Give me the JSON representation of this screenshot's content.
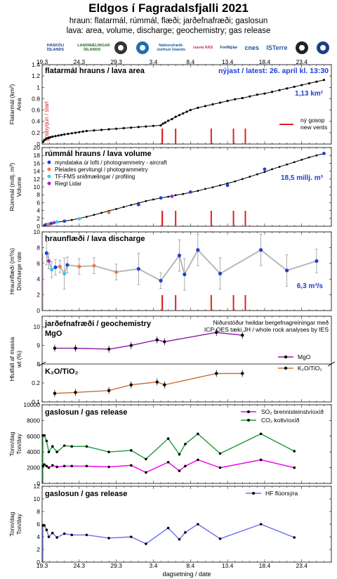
{
  "header": {
    "title": "Eldgos í Fagradalsfjalli 2021",
    "subtitle_is": "hraun: flatarmál, rúmmál, flæði; jarðefnafræði; gaslosun",
    "subtitle_en": "lava: area, volume, discharge; geochemistry; gas release"
  },
  "logos": [
    {
      "name": "haskoli-logo",
      "text": "HÁSKÓLI ÍSLANDS"
    },
    {
      "name": "lmi-logo",
      "text": "LANDMÆLINGAR ÍSLANDS"
    },
    {
      "name": "raven-logo",
      "text": ""
    },
    {
      "name": "vedur-logo",
      "text": ""
    },
    {
      "name": "ni-logo",
      "text": "Náttúrufræði­stofnun Íslands"
    },
    {
      "name": "isavia-logo",
      "text": "isavia ANS"
    },
    {
      "name": "formolar-logo",
      "text": "ForM◎lar"
    },
    {
      "name": "cnes-logo",
      "text": "cnes"
    },
    {
      "name": "isterre-logo",
      "text": "ISTerre"
    },
    {
      "name": "lmv-logo",
      "text": ""
    },
    {
      "name": "cnrs-logo",
      "text": ""
    }
  ],
  "chart_data": {
    "type": "line",
    "x_ticks": [
      "19.3",
      "24.3",
      "29.3",
      "3.4",
      "8.4",
      "13.4",
      "18.4",
      "23.4"
    ],
    "x_label": "dagsetning / date",
    "x_start": "2021-03-19",
    "new_vent_days": [
      16.2,
      16.2,
      18,
      22.8,
      25.8,
      27.4
    ],
    "panels": [
      {
        "id": "area",
        "title": "flatarmál hrauns / lava area",
        "latest": "nýjast / latest: 26. apríl kl. 13:30",
        "ylabel_is": "Flatarmál (km²)",
        "ylabel_en": "Area",
        "ylim": [
          0,
          1.4
        ],
        "yticks": [
          "0",
          "0.2",
          "0.4",
          "0.6",
          "0.8",
          "1",
          "1.2",
          "1.4"
        ],
        "final_value": "1,13 km²",
        "start_label": "gosbyrjun / start",
        "legend_is": "ný gosop",
        "legend_en": "new vents",
        "series": [
          {
            "x": [
              0.15,
              0.3,
              0.5,
              0.7,
              0.9,
              1.1,
              1.4,
              1.8,
              2.2,
              2.6,
              3,
              3.5,
              4,
              4.5,
              5,
              5.5,
              6,
              7,
              8,
              9,
              10,
              11,
              12,
              13,
              14,
              15,
              16,
              16.3,
              16.6,
              17,
              17.5,
              18,
              18.5,
              19,
              19.5,
              20,
              21,
              22,
              23,
              24,
              25,
              26,
              27,
              28,
              29,
              30,
              31,
              32,
              33,
              34,
              35,
              36,
              37,
              38
            ],
            "y": [
              0.04,
              0.07,
              0.09,
              0.1,
              0.11,
              0.12,
              0.13,
              0.14,
              0.15,
              0.16,
              0.17,
              0.18,
              0.19,
              0.2,
              0.21,
              0.22,
              0.23,
              0.24,
              0.25,
              0.26,
              0.27,
              0.28,
              0.29,
              0.3,
              0.31,
              0.32,
              0.33,
              0.36,
              0.38,
              0.41,
              0.44,
              0.48,
              0.51,
              0.54,
              0.57,
              0.6,
              0.64,
              0.67,
              0.7,
              0.73,
              0.76,
              0.79,
              0.81,
              0.84,
              0.87,
              0.89,
              0.92,
              0.95,
              0.98,
              1.01,
              1.04,
              1.07,
              1.1,
              1.13
            ]
          }
        ]
      },
      {
        "id": "volume",
        "title": "rúmmál hrauns / lava volume",
        "ylabel_is": "Rúmmál (millj. m³)",
        "ylabel_en": "Volume",
        "ylim": [
          0,
          20
        ],
        "yticks": [
          "0",
          "2",
          "4",
          "6",
          "8",
          "10",
          "12",
          "14",
          "16",
          "18",
          "20"
        ],
        "final_value": "18,5 millj. m³",
        "legend": [
          {
            "label": "myndataka úr lofti / photogrammetry - aircraft",
            "color": "#1f3fd6"
          },
          {
            "label": "Pleiades gervitungl / photogrammetry",
            "color": "#ee7a4a"
          },
          {
            "label": "TF-FMS sniðmælingar / profiling",
            "color": "#3ec7f0"
          },
          {
            "label": "Riegl Lidar",
            "color": "#9b30c0"
          }
        ],
        "series": [
          {
            "x": [
              0.3,
              1,
              1.5,
              2,
              3,
              4,
              5,
              6,
              7,
              8,
              9,
              10,
              11,
              12,
              13,
              14,
              15,
              16,
              17,
              18,
              19,
              20,
              21,
              22,
              23,
              24,
              25,
              26,
              27,
              28,
              29,
              30,
              31,
              32,
              33,
              34,
              35,
              36,
              37,
              38
            ],
            "y": [
              0.3,
              0.6,
              0.8,
              1,
              1.3,
              1.6,
              2,
              2.4,
              2.9,
              3.4,
              3.9,
              4.4,
              4.9,
              5.4,
              5.9,
              6.4,
              6.8,
              7.2,
              7.5,
              7.9,
              8.2,
              8.6,
              9,
              9.5,
              9.9,
              10.4,
              10.9,
              11.4,
              12,
              12.6,
              13.2,
              13.8,
              14.5,
              15.1,
              15.7,
              16.3,
              16.9,
              17.5,
              18,
              18.5
            ]
          }
        ],
        "points": [
          {
            "x": 0.5,
            "y": 0.4,
            "c": "#1f3fd6"
          },
          {
            "x": 1.2,
            "y": 0.7,
            "c": "#1f3fd6"
          },
          {
            "x": 2,
            "y": 1.1,
            "c": "#3ec7f0"
          },
          {
            "x": 3,
            "y": 1.3,
            "c": "#1f3fd6"
          },
          {
            "x": 5,
            "y": 1.9,
            "c": "#3ec7f0"
          },
          {
            "x": 9,
            "y": 3.5,
            "c": "#ee7a4a"
          },
          {
            "x": 13,
            "y": 5.5,
            "c": "#1f3fd6"
          },
          {
            "x": 16,
            "y": 7.2,
            "c": "#1f3fd6"
          },
          {
            "x": 17.5,
            "y": 7.6,
            "c": "#9b30c0"
          },
          {
            "x": 20,
            "y": 8.7,
            "c": "#1f3fd6"
          },
          {
            "x": 25,
            "y": 10.4,
            "c": "#1f3fd6"
          },
          {
            "x": 30,
            "y": 14.5,
            "c": "#1f3fd6"
          },
          {
            "x": 38,
            "y": 18.5,
            "c": "#1f3fd6"
          },
          {
            "x": 0.8,
            "y": 0.5,
            "c": "#ee7a4a"
          },
          {
            "x": 1.6,
            "y": 0.9,
            "c": "#9b30c0"
          }
        ]
      },
      {
        "id": "discharge",
        "title": "hraunflæði / lava discharge",
        "ylabel_is": "Hraunflæði (m³/s)",
        "ylabel_en": "Discharge rate",
        "ylim": [
          0,
          10
        ],
        "yticks": [
          "0",
          "2",
          "4",
          "6",
          "8",
          "10"
        ],
        "final_value": "6,3 m³/s",
        "points": [
          {
            "x": 0.6,
            "y": 7.3,
            "c": "#1f3fd6",
            "e": 1.5
          },
          {
            "x": 0.9,
            "y": 6.3,
            "c": "#9b30c0",
            "e": 1
          },
          {
            "x": 1.3,
            "y": 5.2,
            "c": "#3ec7f0",
            "e": 1
          },
          {
            "x": 1.8,
            "y": 5.5,
            "c": "#1f3fd6",
            "e": 1
          },
          {
            "x": 2.4,
            "y": 5.6,
            "c": "#ee7a4a",
            "e": 0.8
          },
          {
            "x": 3,
            "y": 4.7,
            "c": "#3ec7f0",
            "e": 2
          },
          {
            "x": 3.4,
            "y": 5.8,
            "c": "#1f3fd6",
            "e": 1
          },
          {
            "x": 5,
            "y": 5.6,
            "c": "#ee7a4a",
            "e": 1
          },
          {
            "x": 7,
            "y": 5.7,
            "c": "#ee7a4a",
            "e": 1
          },
          {
            "x": 10,
            "y": 4.9,
            "c": "#ee7a4a",
            "e": 1
          },
          {
            "x": 13,
            "y": 5.3,
            "c": "#1f3fd6",
            "e": 2
          },
          {
            "x": 16,
            "y": 3.8,
            "c": "#1f3fd6",
            "e": 1
          },
          {
            "x": 18.5,
            "y": 7,
            "c": "#1f3fd6",
            "e": 2
          },
          {
            "x": 19.2,
            "y": 4.6,
            "c": "#1f3fd6",
            "e": 2
          },
          {
            "x": 21,
            "y": 7.7,
            "c": "#1f3fd6",
            "e": 2
          },
          {
            "x": 24,
            "y": 4.7,
            "c": "#1f3fd6",
            "e": 2
          },
          {
            "x": 29.5,
            "y": 7.7,
            "c": "#1f3fd6",
            "e": 2
          },
          {
            "x": 33,
            "y": 5.1,
            "c": "#1f3fd6",
            "e": 2
          },
          {
            "x": 37,
            "y": 6.3,
            "c": "#1f3fd6",
            "e": 1.5
          }
        ]
      },
      {
        "id": "geochem",
        "title": "jarðefnafræði / geochemistry",
        "sub_upper": "MgO",
        "sub_lower": "K₂O/TiO₂",
        "note1": "Niðurstöður heildar bergefnagreiningar með",
        "note2": "ICP-OES tæki JH / whole rock analyses by IES",
        "ylabel_is": "Hlutfall af massa",
        "ylabel_en": "wt (%)",
        "upper_ylim": [
          8,
          10.5
        ],
        "upper_yticks": [
          "8",
          "9",
          "10"
        ],
        "lower_ylim": [
          0.1,
          0.3
        ],
        "lower_yticks": [
          "0.1",
          "0.2"
        ],
        "legend_upper": "MgO",
        "legend_lower": "K₂O/TiO₂",
        "mgo": {
          "x": [
            1.7,
            4.5,
            9,
            12,
            15.5,
            16.5,
            23.5,
            27
          ],
          "y": [
            8.85,
            8.85,
            8.8,
            9,
            9.3,
            9.2,
            9.7,
            9.55
          ]
        },
        "k2o": {
          "x": [
            1.7,
            4.5,
            9,
            12,
            15.5,
            16.5,
            23.5,
            27
          ],
          "y": [
            0.145,
            0.15,
            0.16,
            0.19,
            0.205,
            0.19,
            0.25,
            0.25
          ]
        }
      },
      {
        "id": "gas",
        "title": "gaslosun / gas release",
        "ylabel_is": "Tonn/dag",
        "ylabel_en": "Ton/day",
        "ylim": [
          0,
          10000
        ],
        "yticks": [
          "0",
          "2000",
          "4000",
          "6000",
          "8000",
          "10000"
        ],
        "legend": [
          {
            "label": "SO₂ brennisteinstvíoxíð",
            "color": "#ee00ee"
          },
          {
            "label": "CO₂ koltvíoxíð",
            "color": "#1e9a3a"
          }
        ],
        "so2": {
          "x": [
            0.1,
            0.3,
            0.6,
            0.9,
            1.4,
            2,
            3,
            4,
            6,
            9,
            12,
            14,
            17,
            18.5,
            19.3,
            21,
            24,
            29.5,
            34
          ],
          "y": [
            2200,
            2400,
            2200,
            2000,
            2300,
            2100,
            2200,
            2200,
            2200,
            2100,
            2300,
            1400,
            2700,
            1600,
            2200,
            3000,
            2000,
            3000,
            2000
          ]
        },
        "co2": {
          "x": [
            0.1,
            0.3,
            0.6,
            0.9,
            1.4,
            2,
            3,
            4,
            6,
            9,
            12,
            14,
            17,
            18.5,
            19.3,
            21,
            24,
            29.5,
            34
          ],
          "y": [
            6100,
            6100,
            5400,
            4000,
            4700,
            4000,
            4800,
            4700,
            4700,
            4000,
            4200,
            3100,
            5700,
            3700,
            5000,
            6300,
            3800,
            6300,
            4100
          ]
        }
      },
      {
        "id": "hf",
        "title": "gaslosun / gas release",
        "ylabel_is": "Tonn/dag",
        "ylabel_en": "Ton/day",
        "ylim": [
          0,
          12
        ],
        "yticks": [
          "0",
          "2",
          "4",
          "6",
          "8",
          "10",
          "12"
        ],
        "legend": [
          {
            "label": "HF flúorsýra",
            "color": "#6b70f0"
          }
        ],
        "hf": {
          "x": [
            0.1,
            0.3,
            0.6,
            0.9,
            1.4,
            2,
            3,
            4,
            6,
            9,
            12,
            14,
            17,
            18.5,
            19.3,
            21,
            24,
            29.5,
            34
          ],
          "y": [
            5.8,
            5.8,
            5.1,
            4,
            4.6,
            3.9,
            4.5,
            4.3,
            4.3,
            3.8,
            4,
            2.9,
            5.4,
            3.6,
            4.7,
            6,
            3.7,
            6,
            3.9
          ]
        }
      }
    ]
  }
}
